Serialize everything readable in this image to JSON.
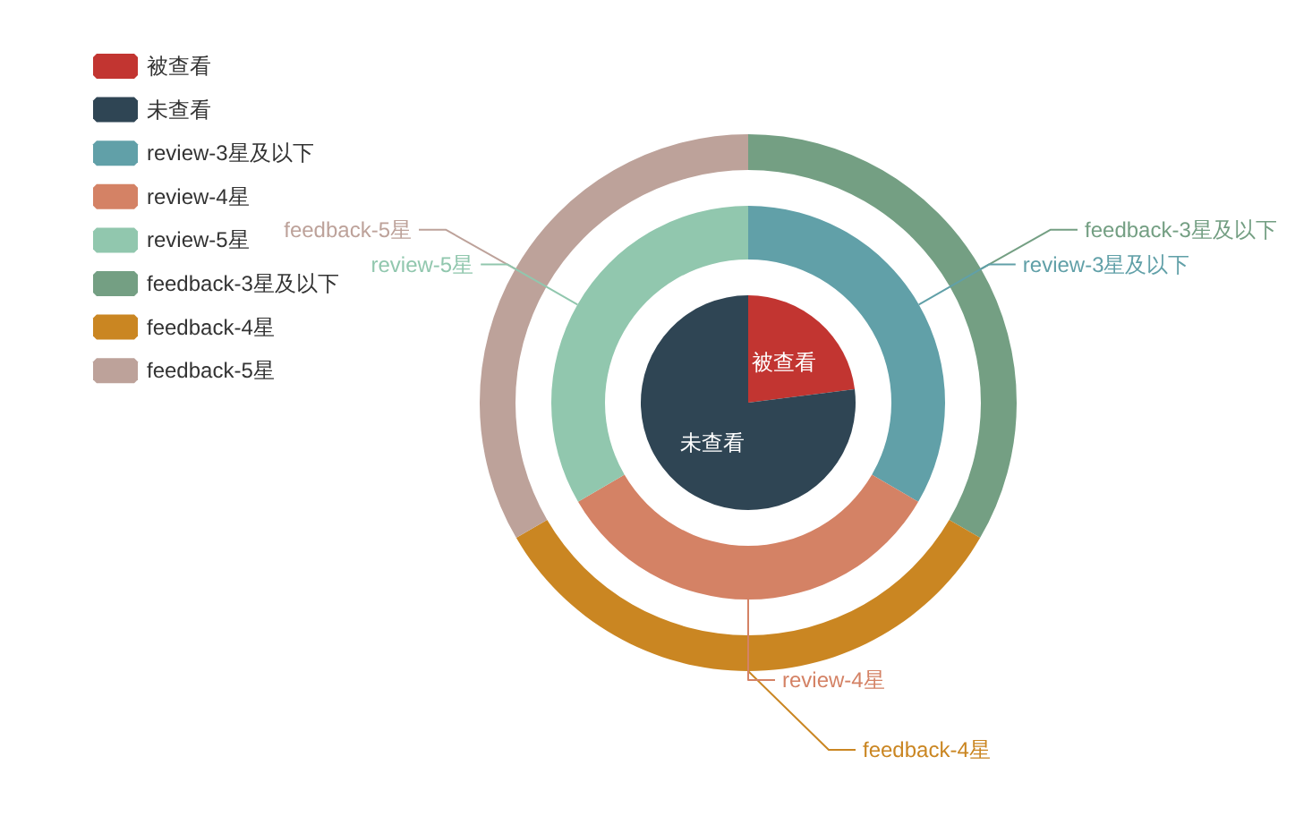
{
  "chart_data": {
    "type": "donut",
    "legend": "top left",
    "categories": [
      "被查看",
      "未查看",
      "review-3星及以下",
      "review-4星",
      "review-5星",
      "feedback-3星及以下",
      "feedback-4星",
      "feedback-5星"
    ],
    "colors": [
      "#c23531",
      "#2f4554",
      "#61a0a8",
      "#d48265",
      "#91c7ae",
      "#749f83",
      "#ca8622",
      "#bda29a"
    ],
    "series": [
      {
        "type": "pie",
        "values": [
          23,
          77,
          null,
          null,
          null,
          null,
          null,
          null
        ]
      },
      {
        "values": [
          null,
          null,
          null,
          null,
          null,
          33.4,
          33.2,
          33.4
        ]
      },
      {
        "values": [
          null,
          null,
          33.4,
          33.2,
          33.4,
          null,
          null,
          null
        ]
      }
    ]
  }
}
